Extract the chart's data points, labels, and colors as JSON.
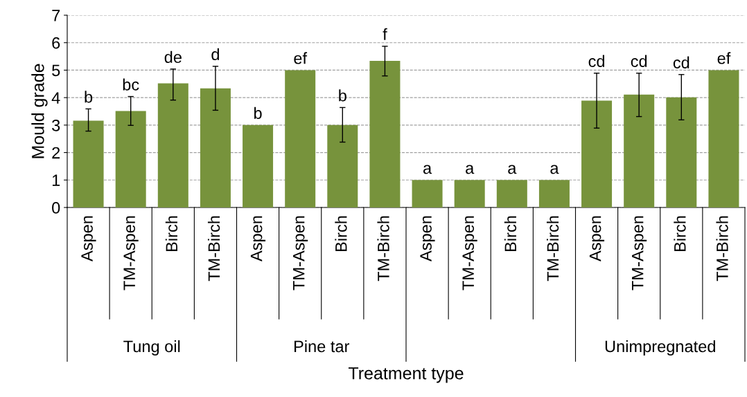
{
  "chart_data": {
    "type": "bar",
    "xlabel": "Treatment type",
    "ylabel": "Mould grade",
    "categories": [
      "Aspen",
      "TM-Aspen",
      "Birch",
      "TM-Birch",
      "Aspen",
      "TM-Aspen",
      "Birch",
      "TM-Birch",
      "Aspen",
      "TM-Aspen",
      "Birch",
      "TM-Birch",
      "Aspen",
      "TM-Aspen",
      "Birch",
      "TM-Birch"
    ],
    "values": [
      3.16,
      3.51,
      4.52,
      4.34,
      3.0,
      5.0,
      3.0,
      5.34,
      1.0,
      1.0,
      1.0,
      1.0,
      3.89,
      4.11,
      4.01,
      5.0
    ],
    "errors": [
      [
        2.78,
        3.59
      ],
      [
        2.99,
        4.04
      ],
      [
        3.91,
        5.04
      ],
      [
        3.54,
        5.14
      ],
      null,
      null,
      [
        2.38,
        3.64
      ],
      [
        4.79,
        5.87
      ],
      null,
      null,
      null,
      null,
      [
        2.89,
        4.89
      ],
      [
        3.31,
        4.89
      ],
      [
        3.19,
        4.84
      ],
      null
    ],
    "value_labels": [
      "b",
      "bc",
      "de",
      "d",
      "b",
      "ef",
      "b",
      "f",
      "a",
      "a",
      "a",
      "a",
      "cd",
      "cd",
      "cd",
      "ef"
    ],
    "color": "#77933c",
    "ylim": [
      0,
      7
    ],
    "yticks": [
      0,
      1,
      2,
      3,
      4,
      5,
      6,
      7
    ],
    "grid": "y",
    "line_style": "dashed",
    "annotations": [
      "Tung oil",
      "Pine tar",
      "Unimpregnated"
    ]
  }
}
